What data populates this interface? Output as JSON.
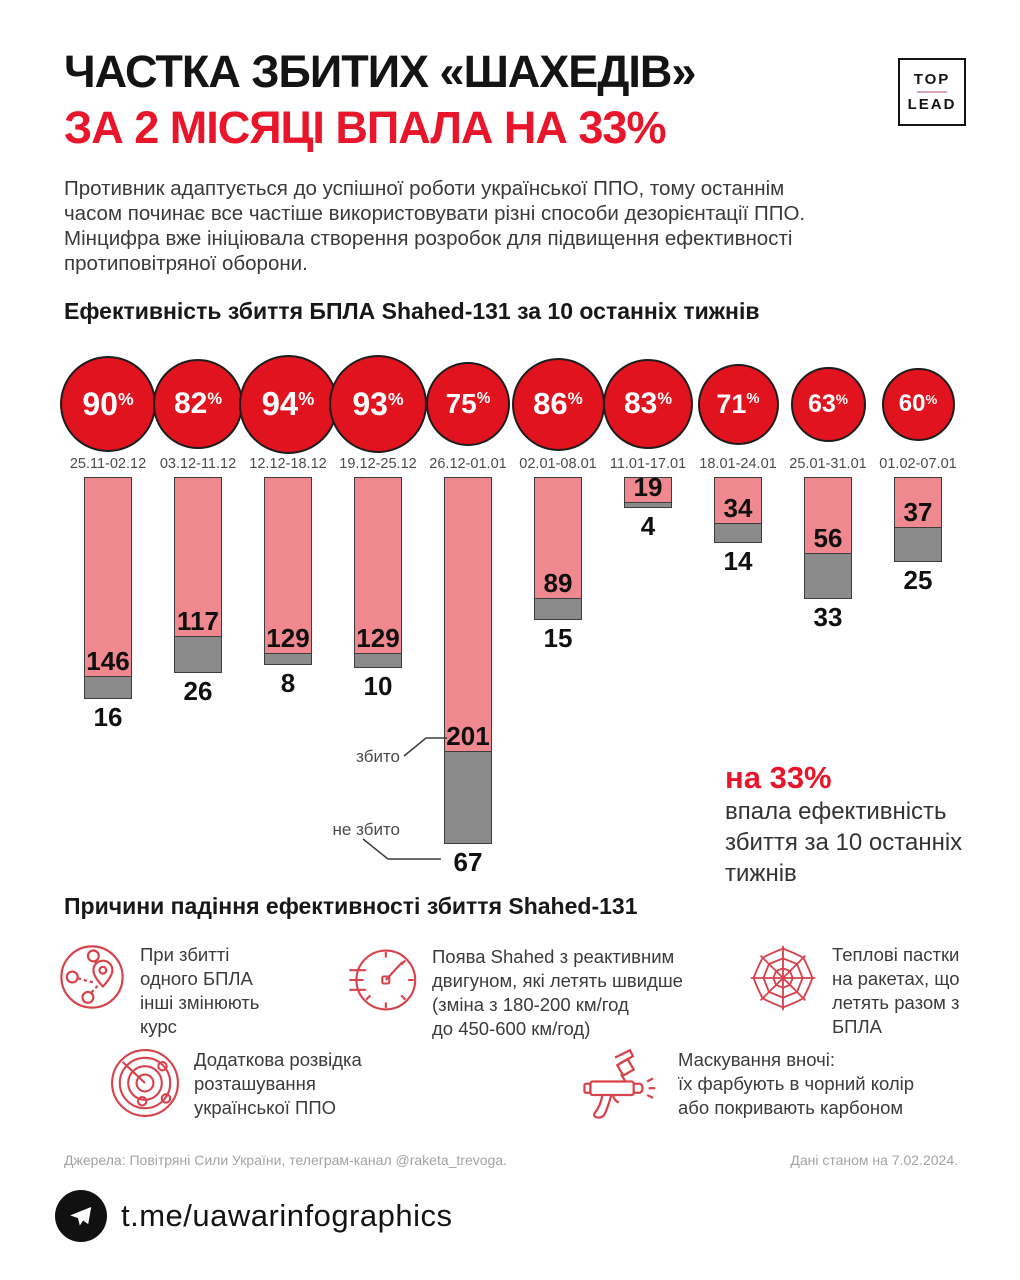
{
  "header": {
    "title_line1": "ЧАСТКА ЗБИТИХ «ШАХЕДІВ»",
    "title_line2": "ЗА 2 МІСЯЦІ ВПАЛА НА 33%",
    "logo_top": "TOP",
    "logo_lead": "LEAD"
  },
  "intro": {
    "text": "Противник адаптується до успішної роботи української ППО, тому останнім\nчасом починає все частіше використовувати різні способи дезорієнтації ППО.\nМінцифра вже ініціювала створення розробок для підвищення ефективності\nпротиповітряної оборони."
  },
  "chart": {
    "title": "Ефективність збиття БПЛА Shahed-131 за 10 останніх тижнів",
    "legend": {
      "shot": "збито",
      "not_shot": "не збито"
    },
    "callout": {
      "highlight": "на 33%",
      "text": "впала ефективність\nзбиття за 10 останніх\nтижнів"
    }
  },
  "chart_data": {
    "type": "bar",
    "title": "Ефективність збиття БПЛА Shahed-131 за 10 останніх тижнів",
    "categories": [
      "25.11-02.12",
      "03.12-11.12",
      "12.12-18.12",
      "19.12-25.12",
      "26.12-01.01",
      "02.01-08.01",
      "11.01-17.01",
      "18.01-24.01",
      "25.01-31.01",
      "01.02-07.01"
    ],
    "series": [
      {
        "name": "ефективність збиття, %",
        "values": [
          90,
          82,
          94,
          93,
          75,
          86,
          83,
          71,
          63,
          60
        ]
      },
      {
        "name": "збито",
        "values": [
          146,
          117,
          129,
          129,
          201,
          89,
          19,
          34,
          56,
          37
        ]
      },
      {
        "name": "не збито",
        "values": [
          16,
          26,
          8,
          10,
          67,
          15,
          4,
          14,
          33,
          25
        ]
      }
    ],
    "percent_suffix": "%",
    "ylabel": "",
    "xlabel": "",
    "legend_position": "annotation-on-5th-column",
    "grid": false
  },
  "reasons": {
    "title": "Причини падіння ефективності збиття Shahed-131",
    "items": [
      {
        "icon": "route-icon",
        "text": "При збитті\nодного БПЛА\nінші змінюють\nкурс"
      },
      {
        "icon": "speedometer-icon",
        "text": "Поява Shahed з реактивним\nдвигуном, які летять швидше\n(зміна з 180-200 км/год\nдо 450-600 км/год)"
      },
      {
        "icon": "spider-web-icon",
        "text": "Теплові пастки\nна ракетах, що\nлетять разом з\nБПЛА"
      },
      {
        "icon": "radar-icon",
        "text": "Додаткова розвідка\nрозташування\nукраїнської ППО"
      },
      {
        "icon": "spray-gun-icon",
        "text": "Маскування вночі:\nїх фарбують в чорний колір\nабо покривають карбоном"
      }
    ]
  },
  "footer": {
    "sources": "Джерела: Повітряні Сили України, телеграм-канал @raketa_trevoga.",
    "data_date": "Дані станом на 7.02.2024.",
    "telegram": "t.me/uawarinfographics"
  },
  "colors": {
    "circle_red": "#e0131f",
    "title_red": "#e8152b",
    "bar_pink": "#f0898f",
    "bar_gray": "#8b8b8b",
    "icon_red": "#d7424b"
  }
}
